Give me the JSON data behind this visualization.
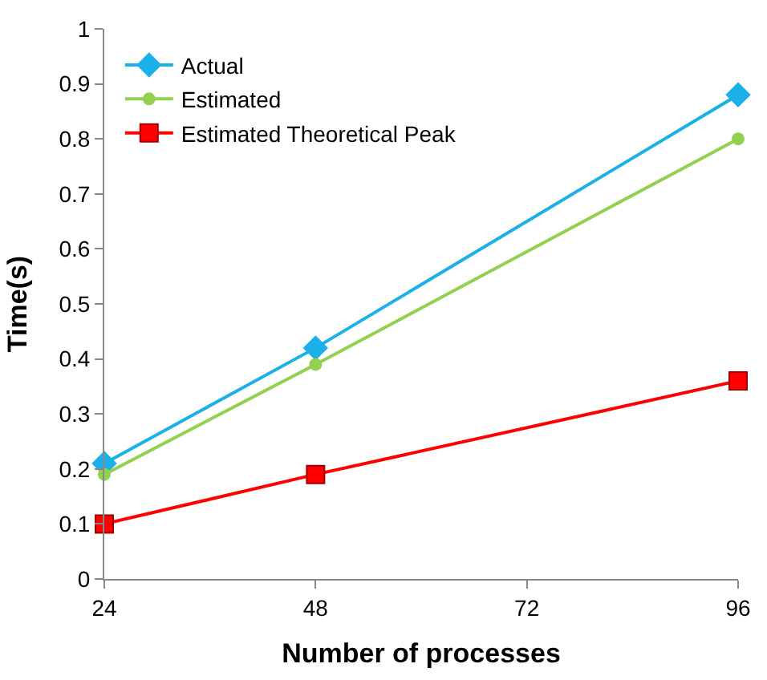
{
  "chart_data": {
    "type": "line",
    "xlabel": "Number of processes",
    "ylabel": "Time(s)",
    "x": [
      24,
      48,
      96
    ],
    "xlim": [
      24,
      96
    ],
    "xticks": [
      24,
      48,
      72,
      96
    ],
    "ylim": [
      0,
      1
    ],
    "yticks": [
      0,
      0.1,
      0.2,
      0.3,
      0.4,
      0.5,
      0.6,
      0.7,
      0.8,
      0.9,
      1
    ],
    "legend": "top left",
    "series": [
      {
        "name": "Actual",
        "color": "#1cb0e8",
        "marker": "diamond",
        "values": [
          0.21,
          0.42,
          0.88
        ]
      },
      {
        "name": "Estimated",
        "color": "#92d050",
        "marker": "circle",
        "values": [
          0.19,
          0.39,
          0.8
        ]
      },
      {
        "name": "Estimated Theoretical Peak",
        "color": "#ff0000",
        "marker": "square",
        "values": [
          0.1,
          0.19,
          0.36
        ]
      }
    ]
  }
}
